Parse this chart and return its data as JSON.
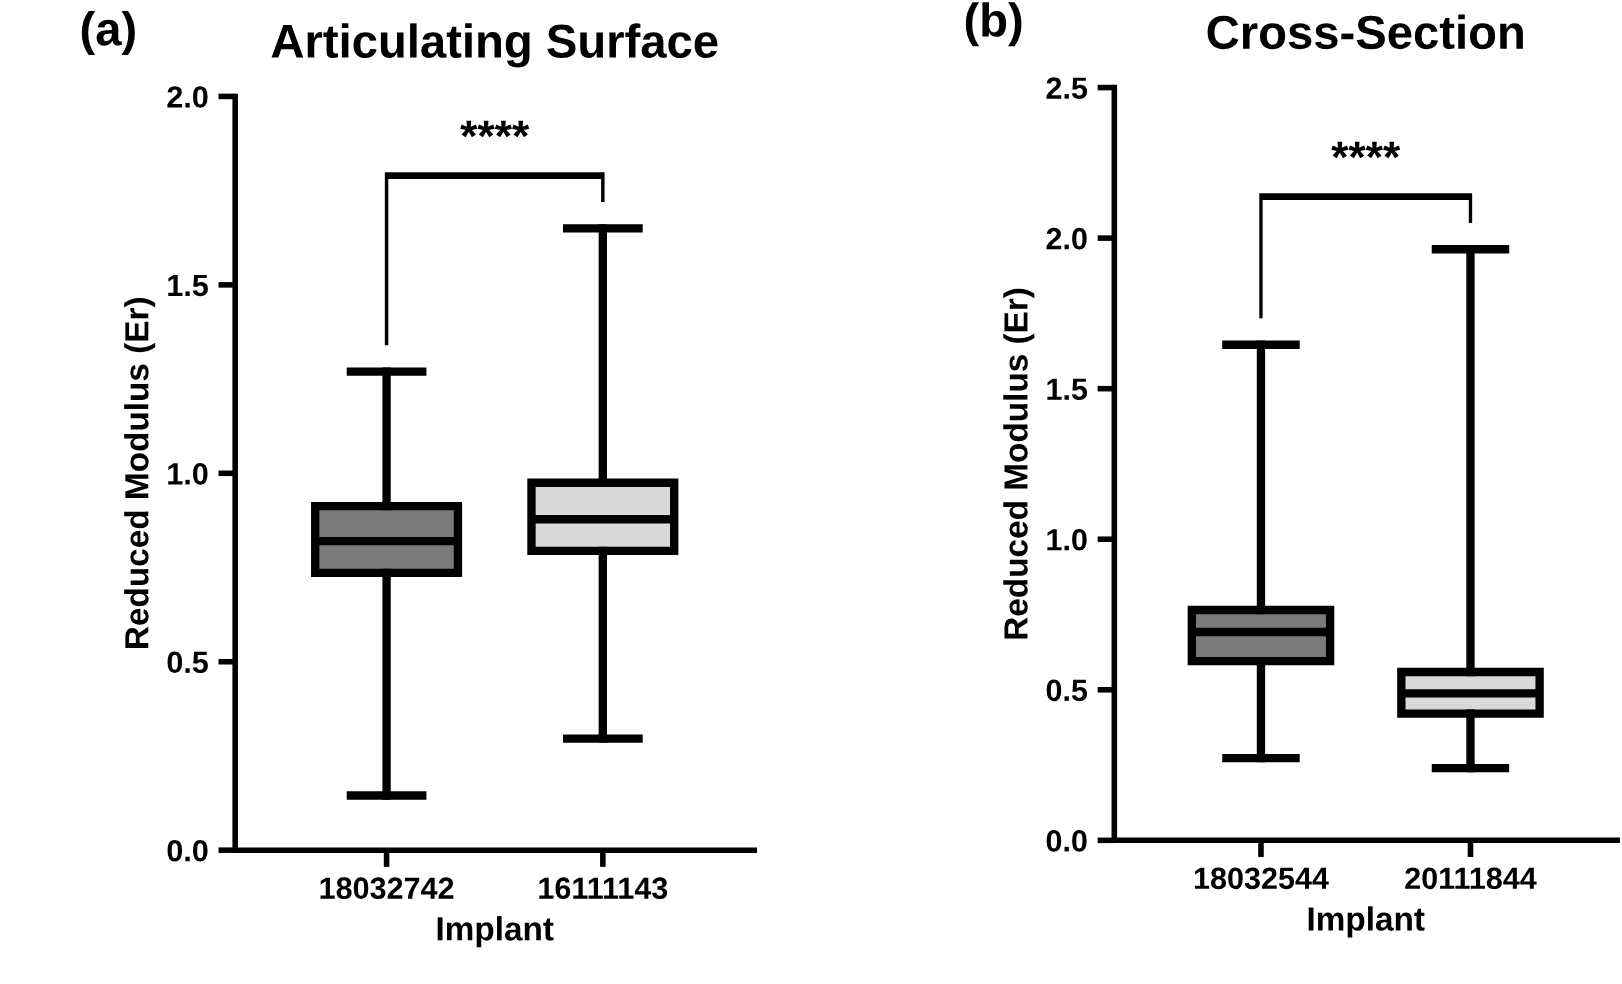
{
  "chart_data": [
    {
      "type": "box",
      "title": "Articulating Surface",
      "xlabel": "Implant",
      "ylabel": "Reduced Modulus (Er)",
      "categories": [
        "18032742",
        "16111143"
      ],
      "colors": [
        "#7a7a7a",
        "#d9d9d9"
      ],
      "boxes": [
        {
          "low": 0.145,
          "q1": 0.736,
          "median": 0.82,
          "q3": 0.913,
          "high": 1.27
        },
        {
          "low": 0.296,
          "q1": 0.794,
          "median": 0.878,
          "q3": 0.975,
          "high": 1.65
        }
      ],
      "ylim": [
        0,
        2.0
      ],
      "yticks": [
        {
          "value": 0,
          "label": "0.0"
        },
        {
          "value": 0.5,
          "label": "0.5"
        },
        {
          "value": 1.0,
          "label": "1.0"
        },
        {
          "value": 1.5,
          "label": "1.5"
        },
        {
          "value": 2.0,
          "label": "2.0"
        }
      ],
      "grid": false,
      "legend": false,
      "annotations": [
        "(a)",
        "****"
      ]
    },
    {
      "type": "box",
      "title": "Cross-Section",
      "xlabel": "Implant",
      "ylabel": "Reduced Modulus (Er)",
      "categories": [
        "18032544",
        "20111844"
      ],
      "colors": [
        "#7a7a7a",
        "#d9d9d9"
      ],
      "boxes": [
        {
          "low": 0.273,
          "q1": 0.595,
          "median": 0.692,
          "q3": 0.765,
          "high": 1.646
        },
        {
          "low": 0.24,
          "q1": 0.421,
          "median": 0.488,
          "q3": 0.559,
          "high": 1.963
        }
      ],
      "ylim": [
        0,
        2.5
      ],
      "yticks": [
        {
          "value": 0,
          "label": "0.0"
        },
        {
          "value": 0.5,
          "label": "0.5"
        },
        {
          "value": 1.0,
          "label": "1.0"
        },
        {
          "value": 1.5,
          "label": "1.5"
        },
        {
          "value": 2.0,
          "label": "2.0"
        },
        {
          "value": 2.5,
          "label": "2.5"
        }
      ],
      "grid": false,
      "legend": false,
      "annotations": [
        "(b)",
        "****"
      ]
    }
  ]
}
